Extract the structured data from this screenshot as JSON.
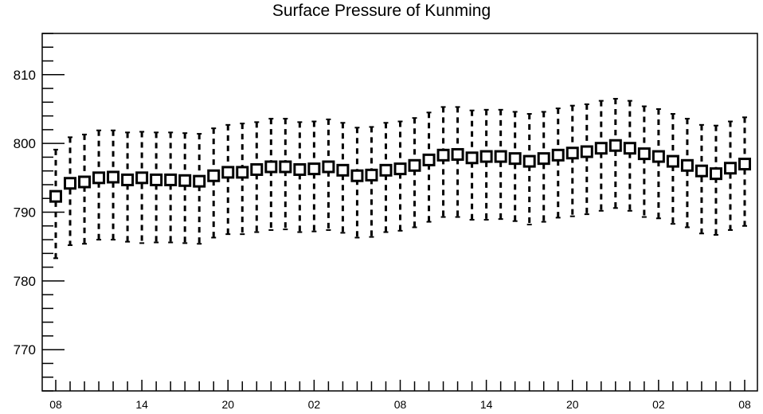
{
  "chart_data": {
    "type": "scatter",
    "title": "Surface Pressure of Kunming",
    "xlabel": "",
    "ylabel": "",
    "x_unit": "hours",
    "x_tick_labels": [
      "08",
      "14",
      "20",
      "02",
      "08",
      "14",
      "20",
      "02",
      "08"
    ],
    "x_tick_hours": [
      0,
      6,
      12,
      18,
      24,
      30,
      36,
      42,
      48
    ],
    "ylim": [
      764,
      816
    ],
    "y_ticks": [
      770,
      780,
      790,
      800,
      810
    ],
    "grid": false,
    "marker": "open-square",
    "error_bar_style": "dashed",
    "color": "#000000",
    "x": [
      0,
      1,
      2,
      3,
      4,
      5,
      6,
      7,
      8,
      9,
      10,
      11,
      12,
      13,
      14,
      15,
      16,
      17,
      18,
      19,
      20,
      21,
      22,
      23,
      24,
      25,
      26,
      27,
      28,
      29,
      30,
      31,
      32,
      33,
      34,
      35,
      36,
      37,
      38,
      39,
      40,
      41,
      42,
      43,
      44,
      45,
      46,
      47,
      48
    ],
    "y": [
      792.3,
      794.2,
      794.4,
      795.0,
      795.1,
      794.7,
      795.0,
      794.7,
      794.7,
      794.6,
      794.5,
      795.3,
      795.8,
      795.8,
      796.2,
      796.6,
      796.6,
      796.2,
      796.3,
      796.6,
      796.1,
      795.3,
      795.4,
      796.1,
      796.3,
      796.8,
      797.6,
      798.3,
      798.4,
      797.9,
      798.1,
      798.1,
      797.8,
      797.4,
      797.8,
      798.3,
      798.6,
      798.8,
      799.3,
      799.7,
      799.3,
      798.5,
      798.1,
      797.4,
      796.8,
      796.0,
      795.6,
      796.4,
      797.0
    ],
    "y_low": [
      783.3,
      785.2,
      785.4,
      786.0,
      786.0,
      785.7,
      785.5,
      785.6,
      785.6,
      785.5,
      785.4,
      786.3,
      786.8,
      786.8,
      787.1,
      787.4,
      787.5,
      787.1,
      787.2,
      787.4,
      787.0,
      786.3,
      786.4,
      787.1,
      787.3,
      787.8,
      788.6,
      789.3,
      789.3,
      788.9,
      788.9,
      789.0,
      788.7,
      788.2,
      788.6,
      789.2,
      789.4,
      789.7,
      790.2,
      790.6,
      790.2,
      789.3,
      789.1,
      788.3,
      787.8,
      786.9,
      786.7,
      787.4,
      788.0
    ],
    "y_high": [
      799.1,
      800.9,
      801.3,
      801.9,
      801.9,
      801.6,
      801.7,
      801.6,
      801.6,
      801.5,
      801.4,
      802.2,
      802.7,
      802.9,
      803.1,
      803.6,
      803.6,
      803.1,
      803.2,
      803.5,
      803.0,
      802.3,
      802.4,
      803.0,
      803.2,
      803.7,
      804.5,
      805.3,
      805.3,
      804.8,
      804.9,
      804.9,
      804.6,
      804.3,
      804.6,
      805.1,
      805.5,
      805.7,
      806.2,
      806.5,
      806.2,
      805.4,
      805.0,
      804.3,
      803.6,
      802.7,
      802.6,
      803.2,
      803.8
    ]
  }
}
